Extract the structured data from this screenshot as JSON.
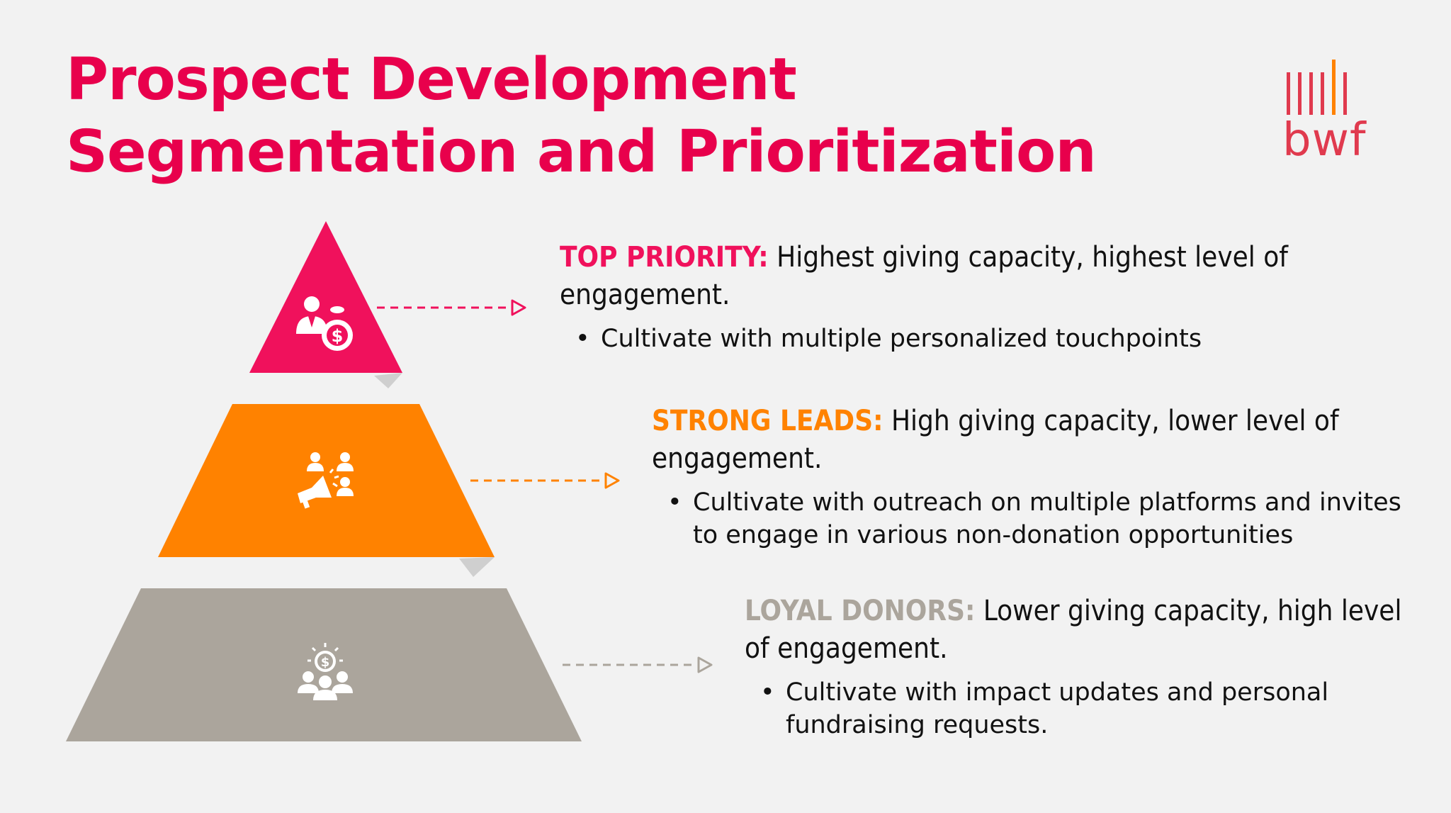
{
  "title": {
    "line1": "Prospect Development",
    "line2": "Segmentation and Prioritization"
  },
  "logo": {
    "text": "bwf",
    "icon": "bwf-bars-logo"
  },
  "colors": {
    "top": "#f0115c",
    "strong": "#ff8200",
    "loyal": "#aba59c",
    "title": "#e8004c"
  },
  "tiers": [
    {
      "label": "TOP PRIORITY:",
      "description": "Highest giving capacity, highest level of engagement.",
      "bullet": "Cultivate with multiple personalized touchpoints",
      "icon": "investor-money-bag-icon"
    },
    {
      "label": "STRONG LEADS:",
      "description": "High giving capacity, lower level of engagement.",
      "bullet": "Cultivate with outreach on multiple platforms and invites to engage in various non-donation opportunities",
      "icon": "megaphone-audience-icon"
    },
    {
      "label": "LOYAL DONORS:",
      "description": "Lower giving capacity, high level of engagement.",
      "bullet": "Cultivate with impact updates and personal fundraising requests.",
      "icon": "donor-group-icon"
    }
  ]
}
